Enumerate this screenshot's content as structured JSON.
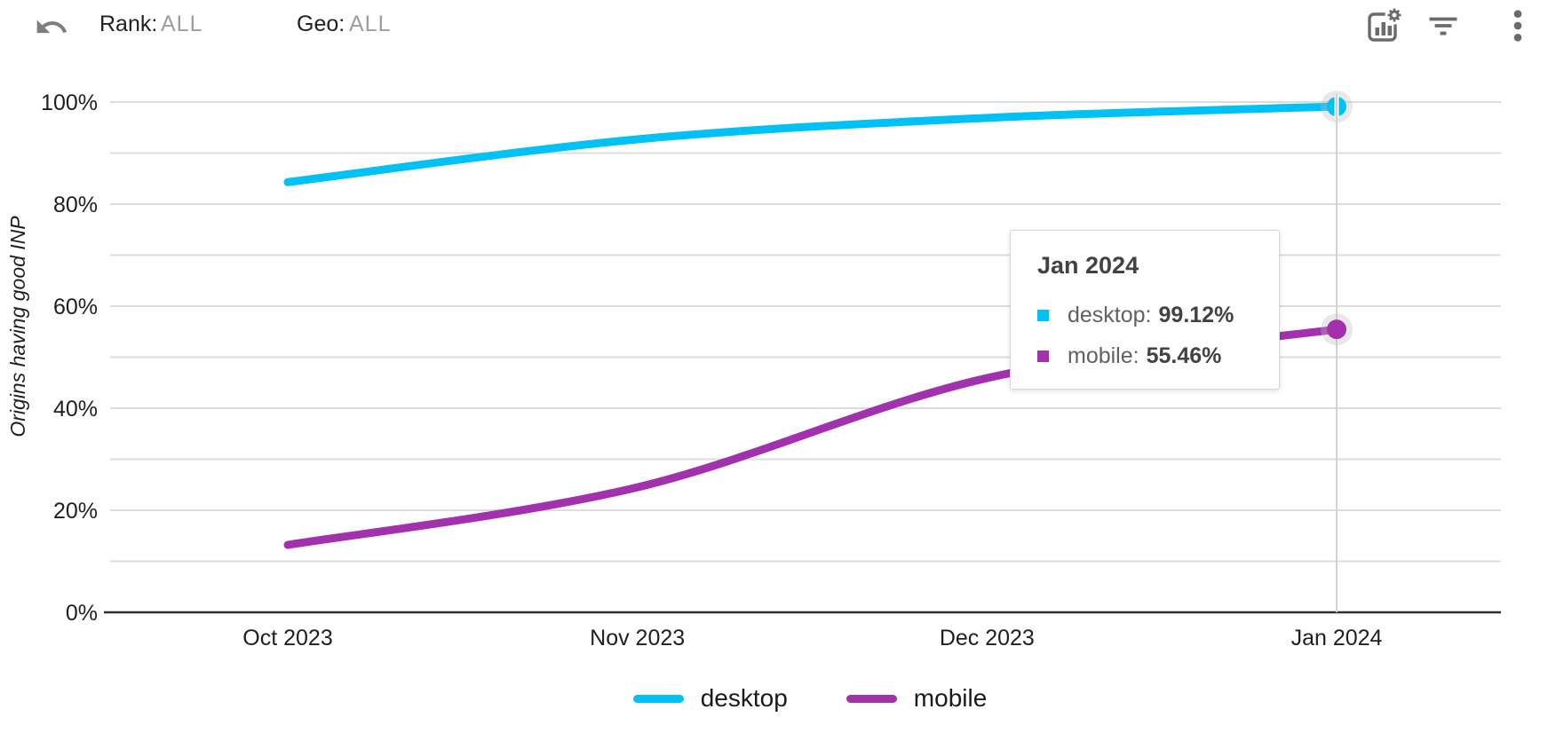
{
  "header": {
    "rank_label": "Rank:",
    "rank_value": "ALL",
    "geo_label": "Geo:",
    "geo_value": "ALL"
  },
  "colors": {
    "grid": "#dcdcdc",
    "axis": "#2e2e2e",
    "crosshair": "#d2d2d2",
    "tick_text": "#1f1f1f",
    "icon": "#6b6b6b",
    "halo": "#bdbdbd"
  },
  "chart_data": {
    "type": "line",
    "title": "",
    "ylabel": "Origins having good INP",
    "xlabel": "",
    "categories": [
      "Oct 2023",
      "Nov 2023",
      "Dec 2023",
      "Jan 2024"
    ],
    "series": [
      {
        "name": "desktop",
        "color": "#00c1f3",
        "values": [
          84.3,
          92.7,
          96.9,
          99.12
        ]
      },
      {
        "name": "mobile",
        "color": "#a231ad",
        "values": [
          13.2,
          24.5,
          45.9,
          55.46
        ]
      }
    ],
    "ylim": [
      0,
      100
    ],
    "y_tick_values": [
      0,
      20,
      40,
      60,
      80,
      100
    ],
    "y_tick_labels": [
      "0%",
      "20%",
      "40%",
      "60%",
      "80%",
      "100%"
    ],
    "gridline_step_pct": 10,
    "grid": "horizontal",
    "legend_position": "bottom",
    "highlighted_x": "Jan 2024",
    "smoothing": "curved"
  },
  "tooltip": {
    "title": "Jan 2024",
    "rows": [
      {
        "label": "desktop:",
        "value": "99.12%"
      },
      {
        "label": "mobile:",
        "value": "55.46%"
      }
    ]
  }
}
